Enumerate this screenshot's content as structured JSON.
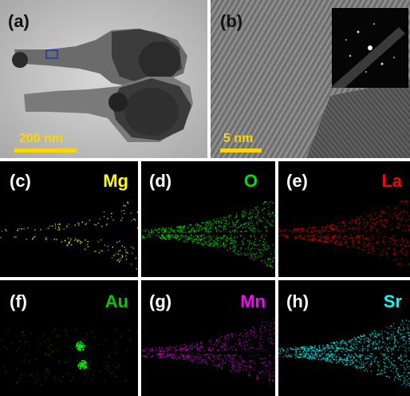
{
  "panels": [
    {
      "id": "a",
      "label": "(a)",
      "scale_text": "200 nm"
    },
    {
      "id": "b",
      "label": "(b)",
      "scale_text": "5 nm"
    },
    {
      "id": "c",
      "label": "(c)",
      "element": "Mg",
      "color": "#ffff00"
    },
    {
      "id": "d",
      "label": "(d)",
      "element": "O",
      "color": "#00e000"
    },
    {
      "id": "e",
      "label": "(e)",
      "element": "La",
      "color": "#ff0000"
    },
    {
      "id": "f",
      "label": "(f)",
      "element": "Au",
      "color": "#00cc00"
    },
    {
      "id": "g",
      "label": "(g)",
      "element": "Mn",
      "color": "#ff00ff"
    },
    {
      "id": "h",
      "label": "(h)",
      "element": "Sr",
      "color": "#00ffff"
    }
  ],
  "colors": {
    "scalebar": "#ffd700",
    "label_text": "#ffffff"
  }
}
